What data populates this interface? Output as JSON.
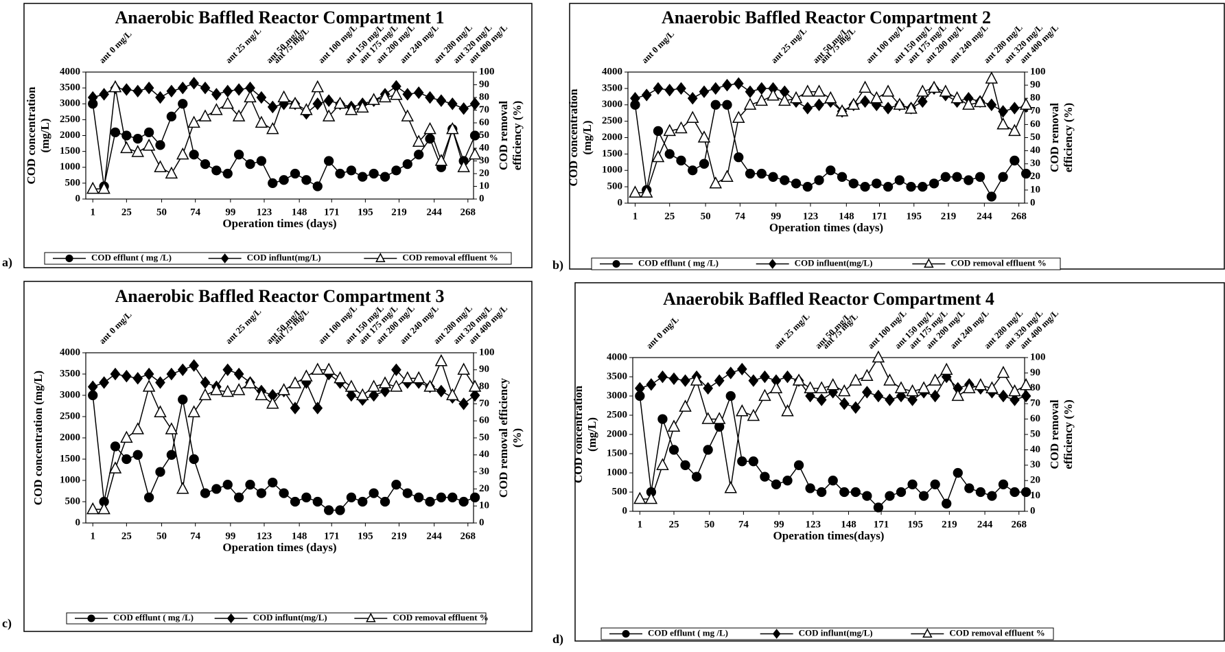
{
  "chart_data": [
    {
      "type": "line",
      "panel_label": "a)",
      "title": "Anaerobic Baffled Reactor Compartment 1",
      "xlabel": "Operation times (days)",
      "ylabel": [
        "COD concentration",
        "(mg/L)"
      ],
      "y2label": [
        "COD removal",
        "efficiency (%)"
      ],
      "xlim": [
        -4,
        272
      ],
      "xticks": [
        1,
        25,
        50,
        74,
        99,
        123,
        148,
        171,
        195,
        219,
        244,
        268
      ],
      "ylim": [
        0,
        4000
      ],
      "yticks": [
        0,
        500,
        1000,
        1500,
        2000,
        2500,
        3000,
        3500,
        4000
      ],
      "y2lim": [
        0,
        100
      ],
      "y2ticks": [
        0,
        10,
        20,
        30,
        40,
        50,
        60,
        70,
        80,
        90,
        100
      ],
      "annotations": [
        {
          "text": "ant 0 mg/L",
          "x": 8
        },
        {
          "text": "ant 25 mg/L",
          "x": 98
        },
        {
          "text": "ant 50 mg/L",
          "x": 127
        },
        {
          "text": "ant 75 mg/L",
          "x": 132
        },
        {
          "text": "ant 100 mg/L",
          "x": 164
        },
        {
          "text": "ant 150 mg/L",
          "x": 183
        },
        {
          "text": "ant 175 mg/L",
          "x": 193
        },
        {
          "text": "ant 200 mg/L",
          "x": 205
        },
        {
          "text": "ant 240 mg/L",
          "x": 222
        },
        {
          "text": "ant 280 mg/L",
          "x": 246
        },
        {
          "text": "ant 320 mg/L",
          "x": 260
        },
        {
          "text": "ant 400 mg/L",
          "x": 271
        }
      ],
      "x": [
        1,
        9,
        17,
        25,
        33,
        41,
        49,
        57,
        65,
        73,
        81,
        89,
        97,
        105,
        113,
        121,
        129,
        137,
        145,
        153,
        161,
        169,
        177,
        185,
        193,
        201,
        209,
        217,
        225,
        233,
        241,
        249,
        257,
        265,
        273
      ],
      "series": [
        {
          "name": "COD efflunt ( mg /L)",
          "marker": "circle",
          "color": "#000000",
          "values": [
            3000,
            400,
            2100,
            2000,
            1900,
            2100,
            1700,
            2600,
            3000,
            1400,
            1100,
            900,
            800,
            1400,
            1100,
            1200,
            500,
            600,
            800,
            600,
            400,
            1200,
            800,
            900,
            700,
            800,
            700,
            900,
            1100,
            1400,
            1900,
            1000,
            2200,
            1200,
            2000
          ]
        },
        {
          "name": "COD influnt(mg/L)",
          "marker": "diamond",
          "color": "#000000",
          "values": [
            3200,
            3300,
            3500,
            3450,
            3400,
            3500,
            3200,
            3400,
            3500,
            3650,
            3500,
            3300,
            3400,
            3450,
            3500,
            3200,
            2900,
            3000,
            3000,
            2700,
            3000,
            3100,
            3000,
            2900,
            3000,
            3100,
            3300,
            3550,
            3300,
            3350,
            3200,
            3100,
            3000,
            2850,
            3000
          ]
        },
        {
          "name": "COD removal effluent %",
          "marker": "triangle",
          "color": "#ffffff",
          "axis": "y2",
          "values": [
            8,
            8,
            88,
            40,
            37,
            42,
            25,
            20,
            35,
            60,
            65,
            70,
            75,
            65,
            80,
            60,
            55,
            80,
            75,
            70,
            88,
            65,
            75,
            70,
            72,
            78,
            80,
            82,
            65,
            45,
            55,
            30,
            55,
            25,
            35
          ]
        }
      ]
    },
    {
      "type": "line",
      "panel_label": "b)",
      "title": "Anaerobic Baffled Reactor Compartment 2",
      "xlabel": "Operation times (days)",
      "ylabel": [
        "COD concentration",
        "(mg/L)"
      ],
      "y2label": [
        "COD removal",
        "efficiency (%)"
      ],
      "xlim": [
        -4,
        272
      ],
      "xticks": [
        1,
        25,
        50,
        74,
        99,
        123,
        148,
        171,
        195,
        219,
        244,
        268
      ],
      "ylim": [
        0,
        4000
      ],
      "yticks": [
        0,
        500,
        1000,
        1500,
        2000,
        2500,
        3000,
        3500,
        4000
      ],
      "y2lim": [
        0,
        100
      ],
      "y2ticks": [
        0,
        10,
        20,
        30,
        40,
        50,
        60,
        70,
        80,
        90,
        100
      ],
      "annotations": [
        {
          "text": "ant 0 mg/L",
          "x": 8
        },
        {
          "text": "ant 25 mg/L",
          "x": 98
        },
        {
          "text": "ant 50 mg/L",
          "x": 127
        },
        {
          "text": "ant 75 mg/L",
          "x": 132
        },
        {
          "text": "ant 100 mg/L",
          "x": 164
        },
        {
          "text": "ant 150 mg/L",
          "x": 183
        },
        {
          "text": "ant 175 mg/L",
          "x": 193
        },
        {
          "text": "ant 200 mg/L",
          "x": 205
        },
        {
          "text": "ant 240 mg/L",
          "x": 222
        },
        {
          "text": "ant 280 mg/L",
          "x": 246
        },
        {
          "text": "ant 320 mg/L",
          "x": 260
        },
        {
          "text": "ant 400 mg/L",
          "x": 271
        }
      ],
      "x": [
        1,
        9,
        17,
        25,
        33,
        41,
        49,
        57,
        65,
        73,
        81,
        89,
        97,
        105,
        113,
        121,
        129,
        137,
        145,
        153,
        161,
        169,
        177,
        185,
        193,
        201,
        209,
        217,
        225,
        233,
        241,
        249,
        257,
        265,
        273
      ],
      "series": [
        {
          "name": "COD efflunt ( mg /L)",
          "marker": "circle",
          "color": "#000000",
          "values": [
            3000,
            400,
            2200,
            1500,
            1300,
            1000,
            1200,
            3000,
            3000,
            1400,
            900,
            900,
            800,
            700,
            600,
            500,
            700,
            1000,
            800,
            600,
            500,
            600,
            500,
            700,
            500,
            500,
            600,
            800,
            800,
            700,
            800,
            200,
            800,
            1300,
            900
          ]
        },
        {
          "name": "COD influent(mg/L)",
          "marker": "diamond",
          "color": "#000000",
          "values": [
            3200,
            3300,
            3500,
            3450,
            3500,
            3200,
            3400,
            3500,
            3600,
            3650,
            3400,
            3500,
            3500,
            3400,
            3100,
            2900,
            3000,
            3100,
            2800,
            3000,
            3100,
            3000,
            2900,
            3000,
            2900,
            3100,
            3500,
            3300,
            3100,
            3200,
            3100,
            3000,
            2800,
            2900,
            2950
          ]
        },
        {
          "name": "COD removal effluent %",
          "marker": "triangle",
          "color": "#ffffff",
          "axis": "y2",
          "values": [
            8,
            8,
            35,
            55,
            57,
            65,
            50,
            15,
            20,
            65,
            75,
            78,
            82,
            78,
            80,
            85,
            85,
            80,
            70,
            75,
            88,
            80,
            85,
            75,
            72,
            85,
            88,
            85,
            80,
            75,
            77,
            95,
            60,
            55,
            75
          ]
        }
      ]
    },
    {
      "type": "line",
      "panel_label": "c)",
      "title": "Anaerobic Baffled Reactor Compartment 3",
      "xlabel": "Operation times (days)",
      "ylabel": [
        "COD concentration (mg/L)"
      ],
      "y2label": [
        "COD removal efficiency",
        "(%)"
      ],
      "xlim": [
        -4,
        272
      ],
      "xticks": [
        1,
        25,
        50,
        74,
        99,
        123,
        148,
        171,
        195,
        219,
        244,
        268
      ],
      "ylim": [
        0,
        4000
      ],
      "yticks": [
        0,
        500,
        1000,
        1500,
        2000,
        2500,
        3000,
        3500,
        4000
      ],
      "y2lim": [
        0,
        100
      ],
      "y2ticks": [
        0,
        10,
        20,
        30,
        40,
        50,
        60,
        70,
        80,
        90,
        100
      ],
      "annotations": [
        {
          "text": "ant 0 mg/L",
          "x": 8
        },
        {
          "text": "ant 25 mg/L",
          "x": 98
        },
        {
          "text": "ant 50 mg/L",
          "x": 127
        },
        {
          "text": "ant 75 mg/L",
          "x": 132
        },
        {
          "text": "ant 100 mg/L",
          "x": 164
        },
        {
          "text": "ant 150 mg/L",
          "x": 183
        },
        {
          "text": "ant 175 mg/L",
          "x": 193
        },
        {
          "text": "ant 200 mg/L",
          "x": 205
        },
        {
          "text": "ant 240 mg/L",
          "x": 222
        },
        {
          "text": "ant 280 mg/L",
          "x": 246
        },
        {
          "text": "ant 320 mg/L",
          "x": 260
        },
        {
          "text": "ant 400 mg/L",
          "x": 271
        }
      ],
      "x": [
        1,
        9,
        17,
        25,
        33,
        41,
        49,
        57,
        65,
        73,
        81,
        89,
        97,
        105,
        113,
        121,
        129,
        137,
        145,
        153,
        161,
        169,
        177,
        185,
        193,
        201,
        209,
        217,
        225,
        233,
        241,
        249,
        257,
        265,
        273
      ],
      "series": [
        {
          "name": "COD efflunt ( mg /L)",
          "marker": "circle",
          "color": "#000000",
          "values": [
            3000,
            500,
            1800,
            1500,
            1600,
            600,
            1200,
            1600,
            2900,
            1500,
            700,
            800,
            900,
            600,
            900,
            700,
            950,
            700,
            500,
            600,
            500,
            300,
            300,
            600,
            500,
            700,
            500,
            900,
            700,
            600,
            500,
            600,
            600,
            500,
            600
          ]
        },
        {
          "name": "COD influnt(mg/L)",
          "marker": "diamond",
          "color": "#000000",
          "values": [
            3200,
            3300,
            3500,
            3450,
            3400,
            3500,
            3300,
            3500,
            3600,
            3700,
            3300,
            3200,
            3600,
            3500,
            3300,
            3100,
            3000,
            3100,
            2700,
            3300,
            2700,
            3500,
            3300,
            3000,
            2900,
            3000,
            3100,
            3600,
            3300,
            3300,
            3200,
            3100,
            2950,
            2800,
            3000
          ]
        },
        {
          "name": "COD removal effluent %",
          "marker": "triangle",
          "color": "#ffffff",
          "axis": "y2",
          "values": [
            8,
            8,
            32,
            50,
            55,
            80,
            65,
            55,
            20,
            65,
            75,
            78,
            77,
            78,
            82,
            75,
            70,
            78,
            82,
            86,
            90,
            90,
            85,
            80,
            75,
            80,
            82,
            80,
            85,
            85,
            80,
            95,
            75,
            90,
            80
          ]
        }
      ]
    },
    {
      "type": "line",
      "panel_label": "d)",
      "title": "Anaerobik Baffled Reactor Compartment 4",
      "xlabel": "Operation times(days)",
      "ylabel": [
        "COD concentration",
        "(mg/L)"
      ],
      "y2label": [
        "COD removal",
        "efficiency (%)"
      ],
      "xlim": [
        -4,
        272
      ],
      "xticks": [
        1,
        25,
        50,
        74,
        99,
        123,
        148,
        171,
        195,
        219,
        244,
        268
      ],
      "ylim": [
        0,
        4000
      ],
      "yticks": [
        0,
        500,
        1000,
        1500,
        2000,
        2500,
        3000,
        3500,
        4000
      ],
      "y2lim": [
        0,
        100
      ],
      "y2ticks": [
        0,
        10,
        20,
        30,
        40,
        50,
        60,
        70,
        80,
        90,
        100
      ],
      "annotations": [
        {
          "text": "ant 0 mg/L",
          "x": 8
        },
        {
          "text": "ant 25 mg/L",
          "x": 98
        },
        {
          "text": "ant 50 mg/L",
          "x": 127
        },
        {
          "text": "ant 75 mg/L",
          "x": 132
        },
        {
          "text": "ant 100 mg/L",
          "x": 164
        },
        {
          "text": "ant 150 mg/L",
          "x": 183
        },
        {
          "text": "ant 175 mg/L",
          "x": 193
        },
        {
          "text": "ant 200 mg/L",
          "x": 205
        },
        {
          "text": "ant 240 mg/L",
          "x": 222
        },
        {
          "text": "ant 280 mg/L",
          "x": 246
        },
        {
          "text": "ant 320 mg/L",
          "x": 260
        },
        {
          "text": "ant 400 mg/L",
          "x": 271
        }
      ],
      "x": [
        1,
        9,
        17,
        25,
        33,
        41,
        49,
        57,
        65,
        73,
        81,
        89,
        97,
        105,
        113,
        121,
        129,
        137,
        145,
        153,
        161,
        169,
        177,
        185,
        193,
        201,
        209,
        217,
        225,
        233,
        241,
        249,
        257,
        265,
        273
      ],
      "series": [
        {
          "name": "COD efflunt ( mg /L)",
          "marker": "circle",
          "color": "#000000",
          "values": [
            3000,
            500,
            2400,
            1600,
            1200,
            900,
            1600,
            2200,
            3000,
            1300,
            1300,
            900,
            700,
            800,
            1200,
            600,
            500,
            800,
            500,
            500,
            400,
            100,
            400,
            500,
            700,
            400,
            700,
            200,
            1000,
            600,
            500,
            400,
            700,
            500,
            500
          ]
        },
        {
          "name": "COD influnt(mg/L)",
          "marker": "diamond",
          "color": "#000000",
          "values": [
            3200,
            3300,
            3500,
            3450,
            3400,
            3500,
            3200,
            3400,
            3600,
            3700,
            3400,
            3500,
            3400,
            3500,
            3400,
            3000,
            2900,
            3100,
            2800,
            2700,
            3100,
            3000,
            2900,
            3000,
            2900,
            3100,
            3000,
            3500,
            3200,
            3300,
            3200,
            3100,
            3000,
            2900,
            3000
          ]
        },
        {
          "name": "COD removal effluent %",
          "marker": "triangle",
          "color": "#ffffff",
          "axis": "y2",
          "values": [
            8,
            8,
            30,
            55,
            68,
            85,
            60,
            60,
            15,
            65,
            62,
            75,
            80,
            65,
            85,
            80,
            80,
            82,
            78,
            85,
            88,
            100,
            85,
            80,
            78,
            80,
            85,
            92,
            75,
            80,
            82,
            80,
            90,
            78,
            82
          ]
        }
      ]
    }
  ]
}
